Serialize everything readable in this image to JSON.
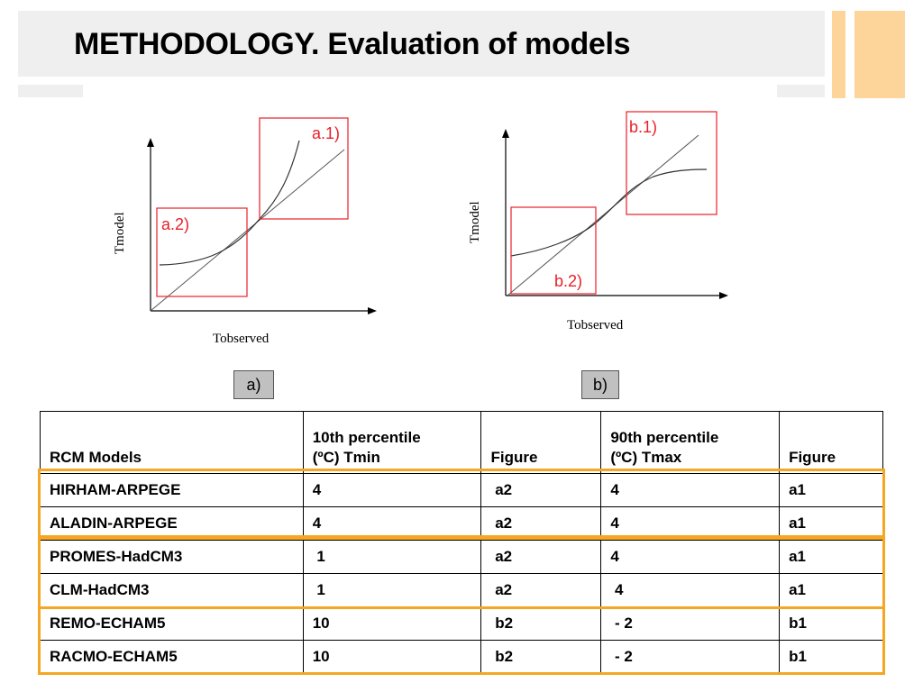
{
  "title": "METHODOLOGY. Evaluation of models",
  "colors": {
    "accent_orange": "#f5a623",
    "band_gray": "#efefef",
    "box_red": "#e8202a"
  },
  "figure_a": {
    "xlabel": "Tobserved",
    "ylabel": "Tmodel",
    "box_upper": "a.1)",
    "box_lower": "a.2)",
    "caption": "a)"
  },
  "figure_b": {
    "xlabel": "Tobserved",
    "ylabel": "Tmodel",
    "box_upper": "b.1)",
    "box_lower": "b.2)",
    "caption": "b)"
  },
  "table": {
    "headers": [
      "RCM Models",
      "10th percentile\n (ºC) Tmin",
      "Figure",
      "90th percentile\n(ºC) Tmax",
      "Figure"
    ],
    "rows": [
      [
        "HIRHAM-ARPEGE",
        "4",
        " a2",
        "4",
        "a1"
      ],
      [
        "ALADIN-ARPEGE",
        "4",
        " a2",
        "4",
        "a1"
      ],
      [
        "PROMES-HadCM3",
        " 1",
        " a2",
        "4",
        "a1"
      ],
      [
        "CLM-HadCM3",
        " 1",
        " a2",
        " 4",
        "a1"
      ],
      [
        "REMO-ECHAM5",
        "10",
        " b2",
        " - 2",
        "b1"
      ],
      [
        "RACMO-ECHAM5",
        "10",
        " b2",
        " - 2",
        "b1"
      ]
    ]
  }
}
